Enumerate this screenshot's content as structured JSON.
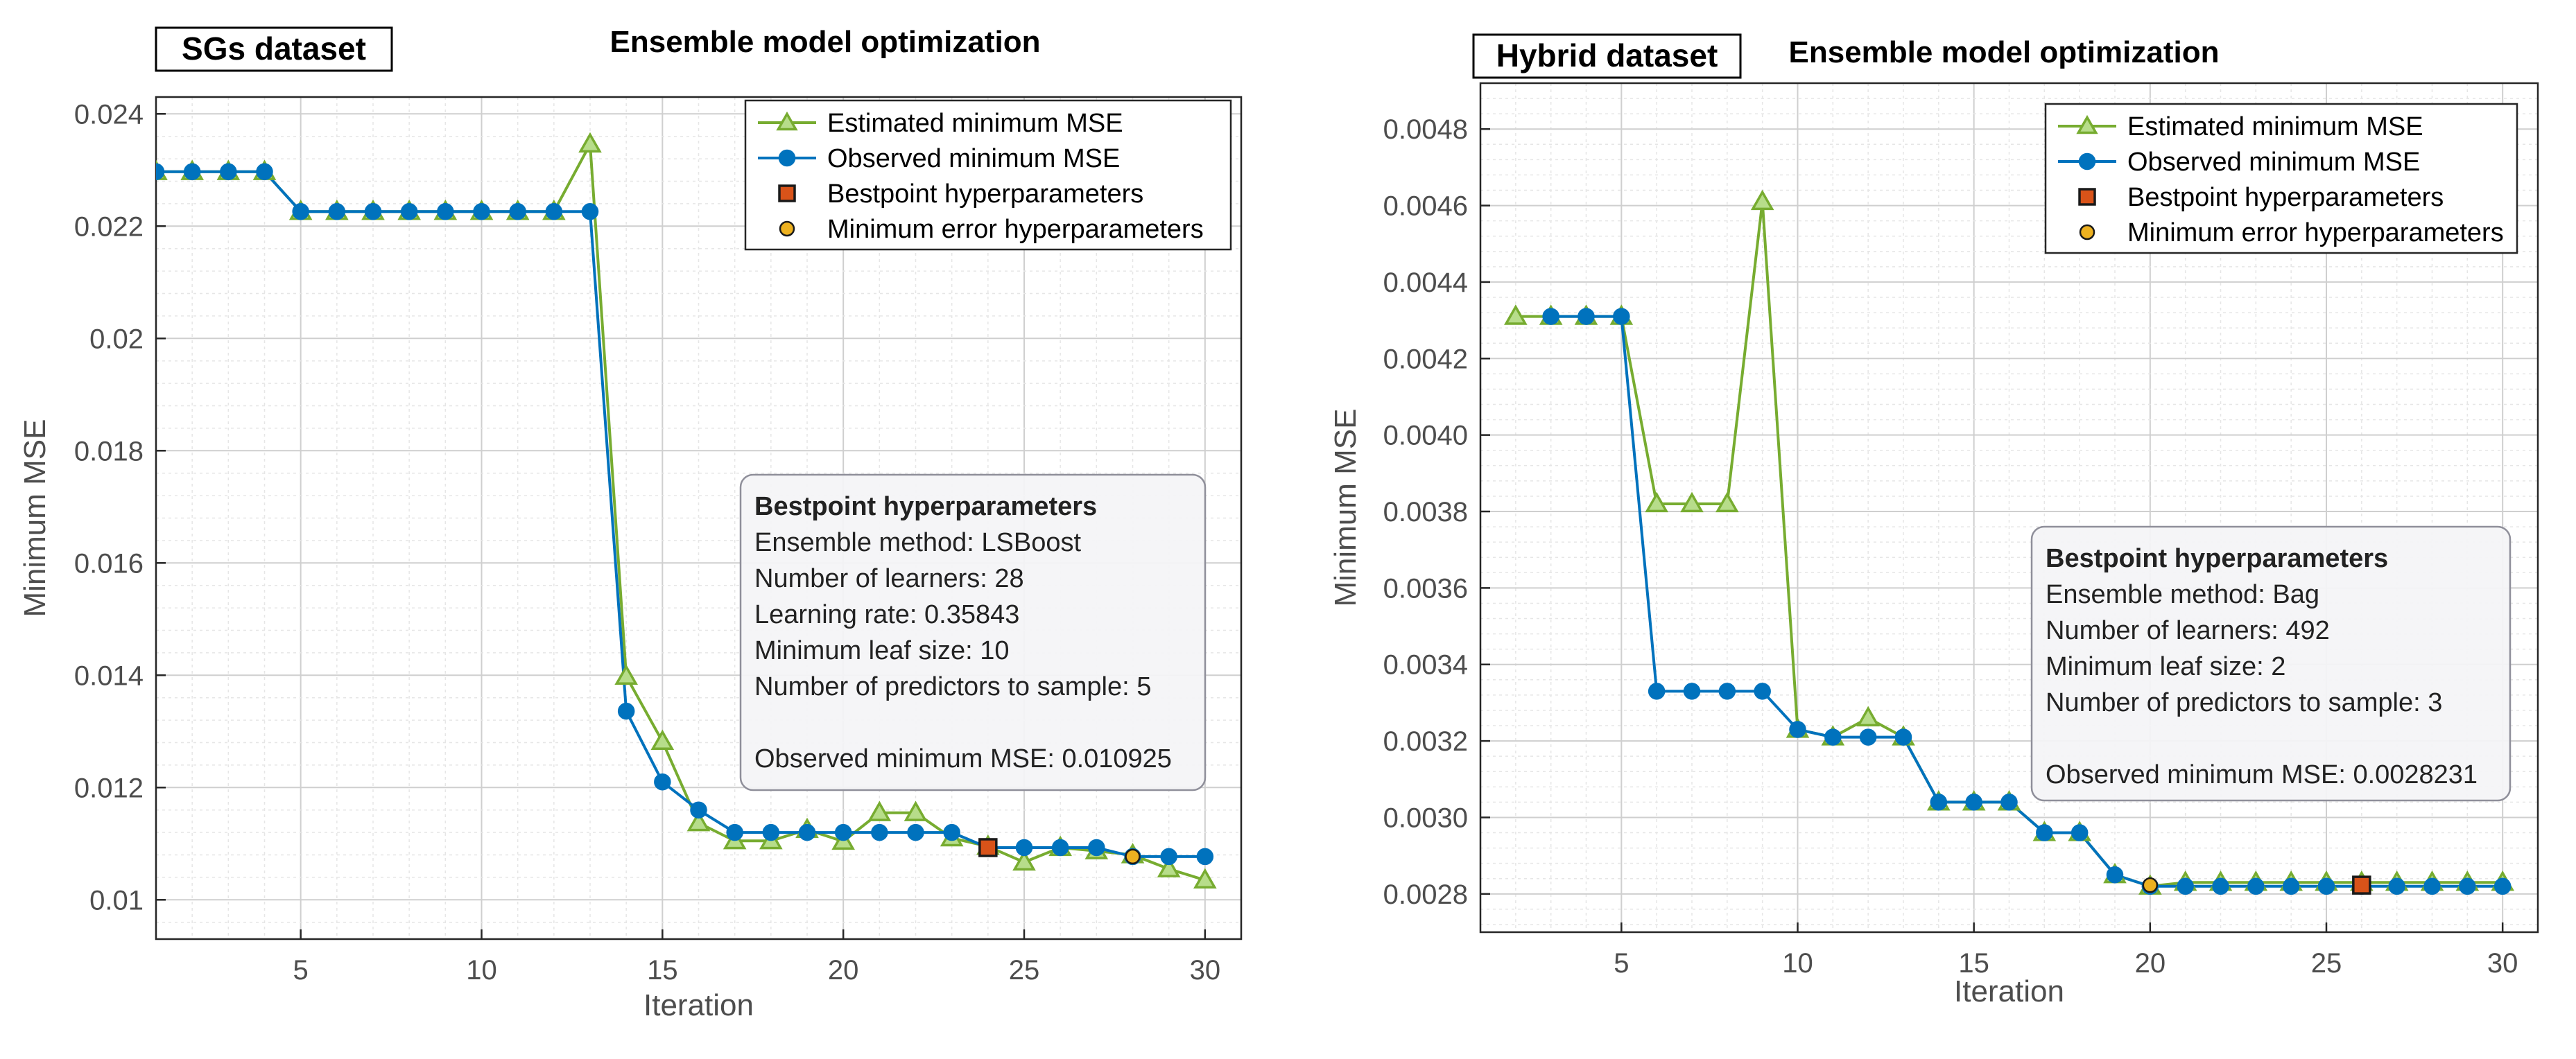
{
  "colors": {
    "estimated": "#77AC30",
    "observed": "#0072BD",
    "bestpoint": "#D95319",
    "min_error": "#EDB120",
    "axis_text": "#4d4d4d",
    "grid": "#d9d9d9"
  },
  "chart_data": [
    {
      "type": "line",
      "panel_label": "SGs dataset",
      "title": "Ensemble model optimization",
      "xlabel": "Iteration",
      "ylabel": "Minimum MSE",
      "xlim": [
        1,
        31
      ],
      "ylim": [
        0.0093,
        0.0243
      ],
      "x_ticks": [
        5,
        10,
        15,
        20,
        25,
        30
      ],
      "x_tick_labels": [
        "5",
        "10",
        "15",
        "20",
        "25",
        "30"
      ],
      "y_ticks": [
        0.01,
        0.012,
        0.014,
        0.016,
        0.018,
        0.02,
        0.022,
        0.024
      ],
      "y_tick_labels": [
        "0.01",
        "0.012",
        "0.014",
        "0.016",
        "0.018",
        "0.02",
        "0.022",
        "0.024"
      ],
      "grid": "minor",
      "legend_location": "top-right",
      "x": [
        1,
        2,
        3,
        4,
        5,
        6,
        7,
        8,
        9,
        10,
        11,
        12,
        13,
        14,
        15,
        16,
        17,
        18,
        19,
        20,
        21,
        22,
        23,
        24,
        25,
        26,
        27,
        28,
        29,
        30
      ],
      "series": [
        {
          "name": "Estimated minimum MSE",
          "marker": "triangle",
          "values": [
            0.02297,
            0.02297,
            0.02297,
            0.02297,
            0.02226,
            0.02226,
            0.02226,
            0.02226,
            0.02226,
            0.02226,
            0.02226,
            0.02226,
            0.02346,
            0.01398,
            0.01282,
            0.01137,
            0.01105,
            0.01105,
            0.01125,
            0.01104,
            0.01155,
            0.01155,
            0.0111,
            0.01095,
            0.01067,
            0.01093,
            0.01087,
            0.0108,
            0.01055,
            0.01035
          ]
        },
        {
          "name": "Observed minimum MSE",
          "marker": "circle",
          "values": [
            0.02297,
            0.02297,
            0.02297,
            0.02297,
            0.02226,
            0.02226,
            0.02226,
            0.02226,
            0.02226,
            0.02226,
            0.02226,
            0.02226,
            0.02226,
            0.01336,
            0.0121,
            0.0116,
            0.0112,
            0.0112,
            0.0112,
            0.0112,
            0.0112,
            0.0112,
            0.0112,
            0.01093,
            0.01093,
            0.01093,
            0.01093,
            0.01077,
            0.01077,
            0.01077
          ]
        }
      ],
      "markers": [
        {
          "name": "Bestpoint hyperparameters",
          "shape": "square",
          "x": 24,
          "y": 0.01093
        },
        {
          "name": "Minimum error hyperparameters",
          "shape": "circle",
          "x": 28,
          "y": 0.01077
        }
      ],
      "annotation": {
        "title": "Bestpoint hyperparameters",
        "lines": [
          "Ensemble method: LSBoost",
          "Number of learners: 28",
          "Learning rate: 0.35843",
          "Minimum leaf size: 10",
          "Number of predictors to sample: 5",
          "",
          "Observed minimum MSE: 0.010925"
        ]
      }
    },
    {
      "type": "line",
      "panel_label": "Hybrid dataset",
      "title": "Ensemble model optimization",
      "xlabel": "Iteration",
      "ylabel": "Minimum MSE",
      "xlim": [
        1,
        31
      ],
      "ylim": [
        0.0027,
        0.00492
      ],
      "x_ticks": [
        5,
        10,
        15,
        20,
        25,
        30
      ],
      "x_tick_labels": [
        "5",
        "10",
        "15",
        "20",
        "25",
        "30"
      ],
      "y_ticks": [
        0.0028,
        0.003,
        0.0032,
        0.0034,
        0.0036,
        0.0038,
        0.004,
        0.0042,
        0.0044,
        0.0046,
        0.0048
      ],
      "y_tick_labels": [
        "0.0028",
        "0.0030",
        "0.0032",
        "0.0034",
        "0.0036",
        "0.0038",
        "0.0040",
        "0.0042",
        "0.0044",
        "0.0046",
        "0.0048"
      ],
      "grid": "minor",
      "legend_location": "top-right",
      "series": [
        {
          "name": "Estimated minimum MSE",
          "marker": "triangle",
          "x": [
            2,
            3,
            4,
            5,
            6,
            7,
            8,
            9,
            10,
            11,
            12,
            13,
            14,
            15,
            16,
            17,
            18,
            19,
            20,
            21,
            22,
            23,
            24,
            25,
            26,
            27,
            28,
            29,
            30
          ],
          "values": [
            0.00431,
            0.00431,
            0.00431,
            0.00431,
            0.00382,
            0.00382,
            0.00382,
            0.00461,
            0.00323,
            0.00321,
            0.00326,
            0.00321,
            0.00304,
            0.00304,
            0.00304,
            0.00296,
            0.00296,
            0.00285,
            0.00282,
            0.00283,
            0.00283,
            0.00283,
            0.00283,
            0.00283,
            0.00283,
            0.00283,
            0.00283,
            0.00283,
            0.00283
          ]
        },
        {
          "name": "Observed minimum MSE",
          "marker": "circle",
          "x": [
            3,
            4,
            5,
            6,
            7,
            8,
            9,
            10,
            11,
            12,
            13,
            14,
            15,
            16,
            17,
            18,
            19,
            20,
            21,
            22,
            23,
            24,
            25,
            26,
            27,
            28,
            29,
            30
          ],
          "values": [
            0.00431,
            0.00431,
            0.00431,
            0.00333,
            0.00333,
            0.00333,
            0.00333,
            0.00323,
            0.00321,
            0.00321,
            0.00321,
            0.00304,
            0.00304,
            0.00304,
            0.00296,
            0.00296,
            0.00285,
            0.00282,
            0.00282,
            0.00282,
            0.00282,
            0.00282,
            0.00282,
            0.00282,
            0.00282,
            0.00282,
            0.00282,
            0.00282
          ]
        }
      ],
      "markers": [
        {
          "name": "Bestpoint hyperparameters",
          "shape": "square",
          "x": 26,
          "y": 0.002823
        },
        {
          "name": "Minimum error hyperparameters",
          "shape": "circle",
          "x": 20,
          "y": 0.002823
        }
      ],
      "annotation": {
        "title": "Bestpoint hyperparameters",
        "lines": [
          "Ensemble method: Bag",
          "Number of learners: 492",
          "Minimum leaf size: 2",
          "Number of predictors to sample: 3",
          "",
          "Observed minimum MSE: 0.0028231"
        ]
      }
    }
  ]
}
